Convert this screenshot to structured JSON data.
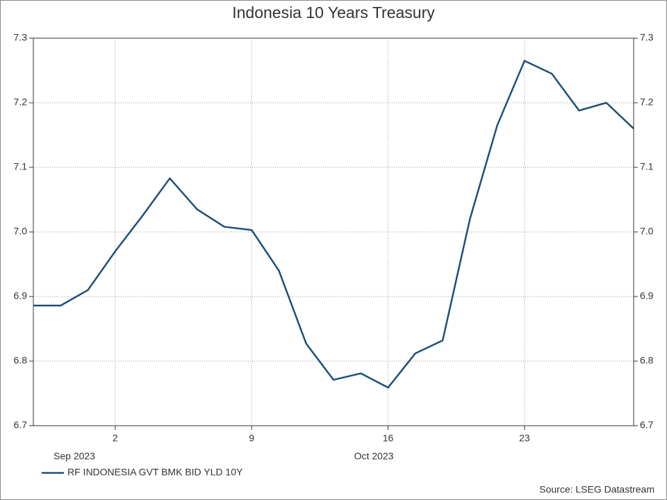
{
  "chart_data": {
    "type": "line",
    "title": "Indonesia 10 Years Treasury",
    "categories": [
      null,
      null,
      null,
      "2",
      null,
      null,
      null,
      null,
      "9",
      null,
      null,
      null,
      null,
      "16",
      null,
      null,
      null,
      null,
      "23",
      null,
      null,
      null,
      null
    ],
    "month_labels": [
      "Sep 2023",
      "Oct 2023"
    ],
    "series": [
      {
        "name": "RF INDONESIA GVT BMK BID YLD 10Y",
        "color": "#1f4e79",
        "values": [
          6.886,
          6.886,
          6.91,
          6.97,
          7.025,
          7.083,
          7.035,
          7.008,
          7.003,
          6.94,
          6.827,
          6.771,
          6.781,
          6.759,
          6.812,
          6.832,
          7.02,
          7.165,
          7.265,
          7.245,
          7.188,
          7.2,
          7.16
        ]
      }
    ],
    "ylim": [
      6.7,
      7.3
    ],
    "yticks": [
      6.7,
      6.8,
      6.9,
      {
        "value": 7.0,
        "label": "7.0"
      },
      7.1,
      7.2,
      7.3
    ],
    "grid": true,
    "legend": "bottom-left",
    "source": "Source: LSEG Datastream"
  }
}
